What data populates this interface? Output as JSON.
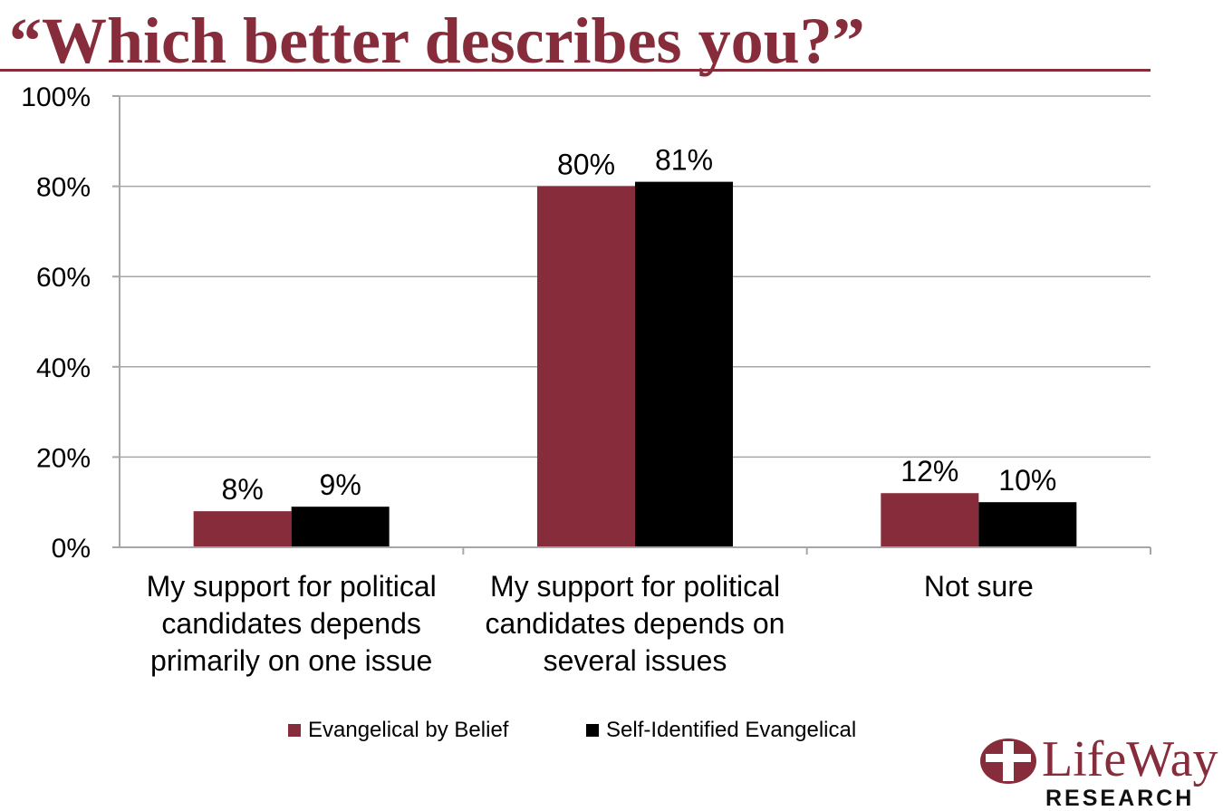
{
  "title": "“Which better describes you?”",
  "colors": {
    "accent": "#862c3a",
    "series1": "#862c3a",
    "series2": "#000000",
    "grid": "#a6a6a6"
  },
  "chart_data": {
    "type": "bar",
    "title": "“Which better describes you?”",
    "xlabel": "",
    "ylabel": "",
    "ylim": [
      0,
      100
    ],
    "yticks": [
      0,
      20,
      40,
      60,
      80,
      100
    ],
    "ytick_labels": [
      "0%",
      "20%",
      "40%",
      "60%",
      "80%",
      "100%"
    ],
    "grid": true,
    "legend_position": "bottom",
    "categories": [
      "My support for political candidates depends primarily on one issue",
      "My support for political candidates depends on several issues",
      "Not sure"
    ],
    "series": [
      {
        "name": "Evangelical by Belief",
        "values": [
          8,
          80,
          12
        ],
        "labels": [
          "8%",
          "80%",
          "12%"
        ],
        "color": "#862c3a"
      },
      {
        "name": "Self-Identified Evangelical",
        "values": [
          9,
          81,
          10
        ],
        "labels": [
          "9%",
          "81%",
          "10%"
        ],
        "color": "#000000"
      }
    ]
  },
  "logo": {
    "word": "LifeWay",
    "sub": "RESEARCH",
    "mark": "cross-emblem-icon"
  }
}
